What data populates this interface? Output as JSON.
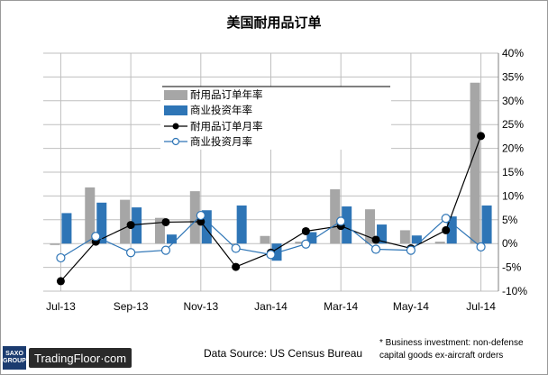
{
  "chart_data": {
    "type": "bar",
    "title": "美国耐用品订单",
    "x_tick_labels": [
      "Jul-13",
      "Sep-13",
      "Nov-13",
      "Jan-14",
      "Mar-14",
      "May-14",
      "Jul-14"
    ],
    "categories": [
      "Jul-13",
      "Aug-13",
      "Sep-13",
      "Oct-13",
      "Nov-13",
      "Dec-13",
      "Jan-14",
      "Feb-14",
      "Mar-14",
      "Apr-14",
      "May-14",
      "Jun-14",
      "Jul-14"
    ],
    "y_tick_labels": [
      "40%",
      "35%",
      "30%",
      "25%",
      "20%",
      "15%",
      "10%",
      "5%",
      "0%",
      "-5%",
      "-10%"
    ],
    "ylim": [
      -10,
      40
    ],
    "y_axis_position": "right",
    "grid": true,
    "legend_position": "top-left inside",
    "series": [
      {
        "name": "耐用品订单年率",
        "kind": "bar",
        "color": "#a6a6a6",
        "values": [
          -0.3,
          11.8,
          9.2,
          5.4,
          11.0,
          0.0,
          1.6,
          0.4,
          11.4,
          7.2,
          2.8,
          0.4,
          33.8
        ]
      },
      {
        "name": "商业投资年率",
        "kind": "bar",
        "color": "#2e75b6",
        "values": [
          6.4,
          8.6,
          7.6,
          1.9,
          7.0,
          8.0,
          -3.6,
          2.4,
          7.8,
          4.0,
          1.7,
          5.7,
          8.0
        ]
      },
      {
        "name": "耐用品订单月率",
        "kind": "line",
        "color": "#000000",
        "values": [
          -7.9,
          0.4,
          3.9,
          4.5,
          4.6,
          -4.9,
          -1.9,
          2.6,
          3.7,
          0.8,
          -1.0,
          2.8,
          22.6
        ]
      },
      {
        "name": "商业投资月率",
        "kind": "line",
        "color": "#2e75b6",
        "values": [
          -3.0,
          1.5,
          -1.9,
          -1.4,
          5.9,
          -1.0,
          -2.3,
          -0.1,
          4.7,
          -1.2,
          -1.4,
          5.3,
          -0.7
        ]
      }
    ],
    "source": "Data Source:  US Census Bureau",
    "footnote_lines": [
      "* Business investment: non-defense",
      "capital goods ex-aircraft orders"
    ]
  },
  "logo": {
    "saxo_top": "SAXO",
    "saxo_bottom": "GROUP",
    "tradingfloor": "TradingFloor·com"
  }
}
